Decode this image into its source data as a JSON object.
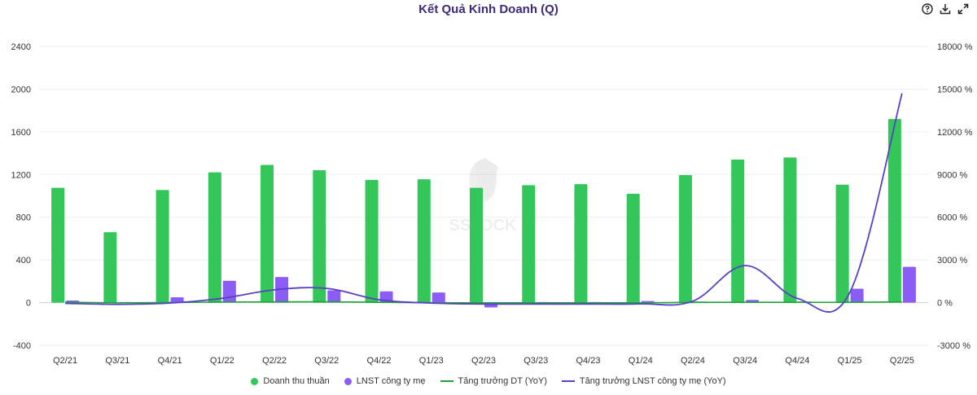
{
  "toolbar": {
    "help": "help-icon",
    "download": "download-icon",
    "expand": "expand-icon"
  },
  "colors": {
    "revenue": "#33c659",
    "profit": "#8b5cf6",
    "rev_growth": "#1fa33a",
    "profit_growth": "#5b3fc4"
  },
  "chart_data": {
    "type": "bar",
    "title": "Kết Quả Kinh Doanh (Q)",
    "categories": [
      "Q2/21",
      "Q3/21",
      "Q4/21",
      "Q1/22",
      "Q2/22",
      "Q3/22",
      "Q4/22",
      "Q1/23",
      "Q2/23",
      "Q3/23",
      "Q4/23",
      "Q1/24",
      "Q2/24",
      "Q3/24",
      "Q4/24",
      "Q1/25",
      "Q2/25"
    ],
    "left_axis": {
      "min": -400,
      "max": 2400,
      "ticks": [
        "2400",
        "2000",
        "1600",
        "1200",
        "800",
        "400",
        "0",
        "-400"
      ]
    },
    "right_axis": {
      "min": -3000,
      "max": 18000,
      "ticks": [
        "18000 %",
        "15000 %",
        "12000 %",
        "9000 %",
        "6000 %",
        "3000 %",
        "0 %",
        "-3000 %"
      ]
    },
    "series": [
      {
        "name": "Doanh thu thuần",
        "type": "bar",
        "axis": "left",
        "values": [
          1075,
          660,
          1055,
          1220,
          1290,
          1240,
          1150,
          1155,
          1075,
          1100,
          1110,
          1020,
          1195,
          1340,
          1360,
          1105,
          1720
        ]
      },
      {
        "name": "LNST công ty mẹ",
        "type": "bar",
        "axis": "left",
        "values": [
          20,
          5,
          50,
          205,
          240,
          115,
          105,
          95,
          -45,
          5,
          5,
          15,
          10,
          25,
          10,
          130,
          335
        ]
      },
      {
        "name": "Tăng trưởng DT (YoY)",
        "type": "line",
        "axis": "right",
        "values": [
          30,
          -10,
          10,
          40,
          50,
          60,
          20,
          -5,
          -15,
          -10,
          -10,
          -10,
          15,
          20,
          20,
          20,
          50
        ]
      },
      {
        "name": "Tăng trưởng LNST công ty mẹ (YoY)",
        "type": "line",
        "axis": "right",
        "values": [
          -50,
          -120,
          -30,
          300,
          900,
          1000,
          200,
          -30,
          -100,
          -100,
          -100,
          -90,
          100,
          2600,
          300,
          700,
          14700
        ]
      }
    ],
    "watermark": "SSTOCK"
  }
}
